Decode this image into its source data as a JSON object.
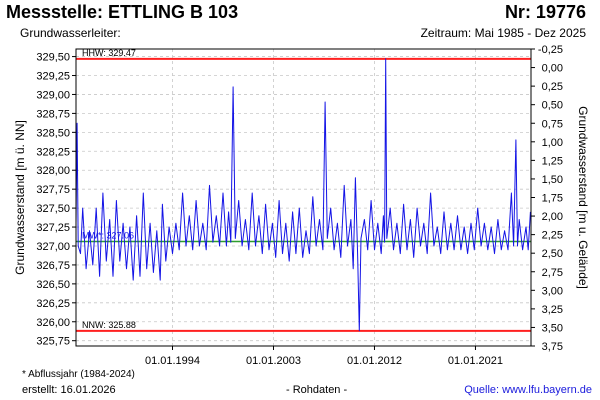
{
  "header": {
    "title": "Messstelle: ETTLING B 103",
    "number": "Nr: 19776",
    "aquifer": "Grundwasserleiter:",
    "period": "Zeitraum: Mai 1985 - Dez 2025"
  },
  "footer": {
    "note": "* Abflussjahr (1984-2024)",
    "created": "erstellt:  16.01.2026",
    "raw": "- Rohdaten -",
    "source": "Quelle: www.lfu.bayern.de"
  },
  "colors": {
    "series": "#1414e6",
    "mean": "#2e9e2e",
    "extreme": "#ff2020",
    "grid": "#c8c8c8"
  },
  "chart_data": {
    "type": "line",
    "ylabel": "Grundwasserstand [m ü. NN]",
    "ylabel_right": "Grundwasserstand [m u. Gelände]",
    "ylim": [
      325.68,
      329.6
    ],
    "ylim_right": [
      -0.25,
      3.75
    ],
    "xlim": [
      1985.4,
      2025.95
    ],
    "yticks": [
      "329,50",
      "329,25",
      "329,00",
      "328,75",
      "328,50",
      "328,25",
      "328,00",
      "327,75",
      "327,50",
      "327,25",
      "327,00",
      "326,75",
      "326,50",
      "326,25",
      "326,00",
      "325,75"
    ],
    "ytick_values": [
      329.5,
      329.25,
      329.0,
      328.75,
      328.5,
      328.25,
      328.0,
      327.75,
      327.5,
      327.25,
      327.0,
      326.75,
      326.5,
      326.25,
      326.0,
      325.75
    ],
    "yticks_right": [
      "-0,25",
      "0,00",
      "0,25",
      "0,50",
      "0,75",
      "1,00",
      "1,25",
      "1,50",
      "1,75",
      "2,00",
      "2,25",
      "2,50",
      "2,75",
      "3,00",
      "3,25",
      "3,50",
      "3,75"
    ],
    "ytick_right_values": [
      -0.25,
      0.0,
      0.25,
      0.5,
      0.75,
      1.0,
      1.25,
      1.5,
      1.75,
      2.0,
      2.25,
      2.5,
      2.75,
      3.0,
      3.25,
      3.5,
      3.75
    ],
    "xticks": [
      "01.01.1994",
      "01.01.2003",
      "01.01.2012",
      "01.01.2021"
    ],
    "xtick_values": [
      1994.0,
      2003.0,
      2012.0,
      2021.0
    ],
    "reference_lines": [
      {
        "label": "HHW: 329.47",
        "value": 329.47,
        "kind": "extreme"
      },
      {
        "label": "NNW: 325.88",
        "value": 325.88,
        "kind": "extreme"
      },
      {
        "label": "MW*: 327.06",
        "value": 327.06,
        "kind": "mean"
      }
    ],
    "series": [
      {
        "points": [
          [
            1985.4,
            327.3
          ],
          [
            1985.5,
            328.62
          ],
          [
            1985.6,
            327.0
          ],
          [
            1985.8,
            326.9
          ],
          [
            1986.0,
            327.5
          ],
          [
            1986.3,
            326.7
          ],
          [
            1986.6,
            327.2
          ],
          [
            1986.9,
            326.75
          ],
          [
            1987.2,
            327.5
          ],
          [
            1987.5,
            326.6
          ],
          [
            1987.8,
            327.7
          ],
          [
            1988.1,
            326.8
          ],
          [
            1988.4,
            327.35
          ],
          [
            1988.7,
            326.6
          ],
          [
            1989.0,
            327.6
          ],
          [
            1989.3,
            326.8
          ],
          [
            1989.6,
            327.3
          ],
          [
            1989.9,
            326.7
          ],
          [
            1990.2,
            327.25
          ],
          [
            1990.5,
            326.55
          ],
          [
            1990.8,
            327.4
          ],
          [
            1991.1,
            326.6
          ],
          [
            1991.4,
            327.7
          ],
          [
            1991.7,
            326.7
          ],
          [
            1992.0,
            327.3
          ],
          [
            1992.3,
            326.65
          ],
          [
            1992.6,
            327.2
          ],
          [
            1992.9,
            326.55
          ],
          [
            1993.1,
            327.55
          ],
          [
            1993.4,
            326.8
          ],
          [
            1993.7,
            327.25
          ],
          [
            1994.0,
            326.9
          ],
          [
            1994.3,
            327.3
          ],
          [
            1994.6,
            326.95
          ],
          [
            1994.9,
            327.7
          ],
          [
            1995.2,
            327.0
          ],
          [
            1995.5,
            327.4
          ],
          [
            1995.8,
            326.95
          ],
          [
            1996.1,
            327.6
          ],
          [
            1996.4,
            327.0
          ],
          [
            1996.7,
            327.3
          ],
          [
            1997.0,
            326.95
          ],
          [
            1997.3,
            327.8
          ],
          [
            1997.6,
            327.05
          ],
          [
            1997.9,
            327.4
          ],
          [
            1998.2,
            327.0
          ],
          [
            1998.5,
            327.7
          ],
          [
            1998.8,
            327.0
          ],
          [
            1999.0,
            327.45
          ],
          [
            1999.2,
            327.05
          ],
          [
            1999.4,
            329.1
          ],
          [
            1999.6,
            327.1
          ],
          [
            1999.9,
            327.6
          ],
          [
            2000.2,
            327.0
          ],
          [
            2000.5,
            327.35
          ],
          [
            2000.8,
            326.95
          ],
          [
            2001.1,
            327.7
          ],
          [
            2001.4,
            327.0
          ],
          [
            2001.7,
            327.4
          ],
          [
            2002.0,
            326.9
          ],
          [
            2002.3,
            327.55
          ],
          [
            2002.6,
            326.95
          ],
          [
            2002.9,
            327.3
          ],
          [
            2003.2,
            326.85
          ],
          [
            2003.5,
            327.6
          ],
          [
            2003.8,
            326.9
          ],
          [
            2004.1,
            327.3
          ],
          [
            2004.4,
            326.8
          ],
          [
            2004.7,
            327.45
          ],
          [
            2005.0,
            326.9
          ],
          [
            2005.3,
            327.5
          ],
          [
            2005.6,
            326.85
          ],
          [
            2005.9,
            327.2
          ],
          [
            2006.2,
            326.9
          ],
          [
            2006.5,
            327.65
          ],
          [
            2006.8,
            327.0
          ],
          [
            2007.1,
            327.35
          ],
          [
            2007.4,
            326.95
          ],
          [
            2007.6,
            328.9
          ],
          [
            2007.8,
            327.1
          ],
          [
            2008.1,
            327.5
          ],
          [
            2008.4,
            326.95
          ],
          [
            2008.7,
            327.3
          ],
          [
            2009.0,
            326.85
          ],
          [
            2009.3,
            327.8
          ],
          [
            2009.6,
            327.0
          ],
          [
            2009.9,
            327.35
          ],
          [
            2010.1,
            326.7
          ],
          [
            2010.3,
            327.9
          ],
          [
            2010.5,
            326.9
          ],
          [
            2010.65,
            325.88
          ],
          [
            2010.8,
            327.1
          ],
          [
            2011.1,
            327.35
          ],
          [
            2011.4,
            326.95
          ],
          [
            2011.7,
            327.6
          ],
          [
            2012.0,
            326.95
          ],
          [
            2012.3,
            327.3
          ],
          [
            2012.6,
            326.9
          ],
          [
            2012.8,
            327.4
          ],
          [
            2012.9,
            327.05
          ],
          [
            2013.0,
            329.47
          ],
          [
            2013.1,
            327.1
          ],
          [
            2013.4,
            327.5
          ],
          [
            2013.7,
            326.95
          ],
          [
            2014.0,
            327.3
          ],
          [
            2014.3,
            326.9
          ],
          [
            2014.6,
            327.55
          ],
          [
            2014.9,
            326.95
          ],
          [
            2015.2,
            327.35
          ],
          [
            2015.5,
            326.85
          ],
          [
            2015.8,
            327.5
          ],
          [
            2016.1,
            327.0
          ],
          [
            2016.4,
            327.3
          ],
          [
            2016.7,
            326.9
          ],
          [
            2017.0,
            327.7
          ],
          [
            2017.3,
            327.0
          ],
          [
            2017.6,
            327.25
          ],
          [
            2017.9,
            326.9
          ],
          [
            2018.2,
            327.45
          ],
          [
            2018.5,
            326.95
          ],
          [
            2018.8,
            327.3
          ],
          [
            2019.1,
            326.95
          ],
          [
            2019.4,
            327.4
          ],
          [
            2019.7,
            326.95
          ],
          [
            2020.0,
            327.25
          ],
          [
            2020.3,
            326.9
          ],
          [
            2020.6,
            327.3
          ],
          [
            2020.9,
            326.95
          ],
          [
            2021.2,
            327.5
          ],
          [
            2021.5,
            327.0
          ],
          [
            2021.8,
            327.3
          ],
          [
            2022.1,
            326.95
          ],
          [
            2022.4,
            327.25
          ],
          [
            2022.7,
            326.9
          ],
          [
            2023.0,
            327.35
          ],
          [
            2023.3,
            326.95
          ],
          [
            2023.6,
            327.2
          ],
          [
            2023.9,
            326.95
          ],
          [
            2024.2,
            327.7
          ],
          [
            2024.4,
            327.0
          ],
          [
            2024.6,
            328.4
          ],
          [
            2024.75,
            327.0
          ],
          [
            2024.9,
            327.35
          ],
          [
            2025.2,
            326.95
          ],
          [
            2025.5,
            327.25
          ],
          [
            2025.7,
            326.95
          ],
          [
            2025.9,
            327.45
          ]
        ]
      }
    ]
  }
}
